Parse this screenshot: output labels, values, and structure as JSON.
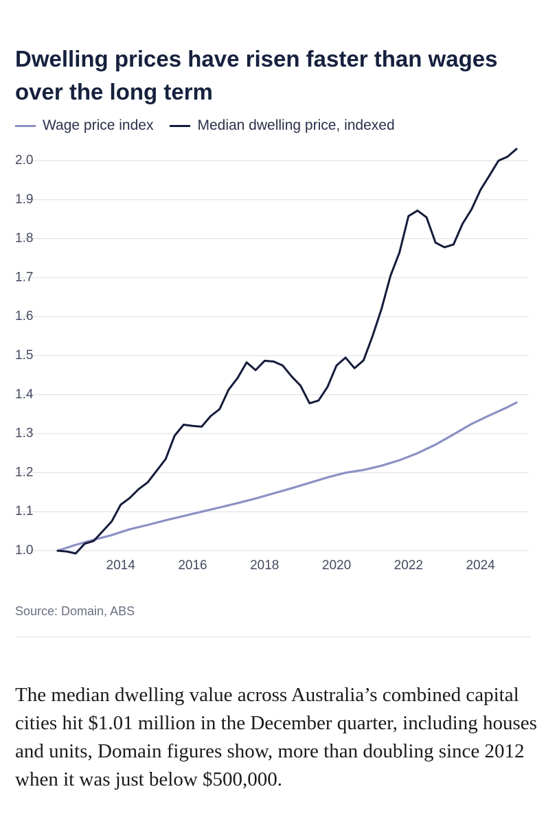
{
  "colors": {
    "wage": "#8c91c4",
    "dwelling": "#151c3b",
    "grid": "#dedee3",
    "axis_text": "#444a60"
  },
  "chart_data": {
    "type": "line",
    "title": "Dwelling prices have risen faster than wages over the long term",
    "ylim": [
      1.0,
      2.0
    ],
    "xlim": [
      2012.25,
      2025.0
    ],
    "y_ticks": [
      "1.0",
      "1.1",
      "1.2",
      "1.3",
      "1.4",
      "1.5",
      "1.6",
      "1.7",
      "1.8",
      "1.9",
      "2.0"
    ],
    "x_ticks": [
      "2014",
      "2016",
      "2018",
      "2020",
      "2022",
      "2024"
    ],
    "grid": true,
    "legend_position": "top-left",
    "series": [
      {
        "name": "Wage price index",
        "color": "#8c91c4",
        "points": [
          [
            2012.25,
            1.0
          ],
          [
            2012.75,
            1.015
          ],
          [
            2013.25,
            1.028
          ],
          [
            2013.75,
            1.04
          ],
          [
            2014.25,
            1.055
          ],
          [
            2014.75,
            1.066
          ],
          [
            2015.25,
            1.078
          ],
          [
            2015.75,
            1.089
          ],
          [
            2016.25,
            1.1
          ],
          [
            2016.75,
            1.111
          ],
          [
            2017.25,
            1.122
          ],
          [
            2017.75,
            1.134
          ],
          [
            2018.25,
            1.147
          ],
          [
            2018.75,
            1.16
          ],
          [
            2019.25,
            1.174
          ],
          [
            2019.75,
            1.188
          ],
          [
            2020.25,
            1.2
          ],
          [
            2020.75,
            1.207
          ],
          [
            2021.25,
            1.218
          ],
          [
            2021.75,
            1.232
          ],
          [
            2022.25,
            1.25
          ],
          [
            2022.75,
            1.272
          ],
          [
            2023.25,
            1.298
          ],
          [
            2023.75,
            1.325
          ],
          [
            2024.25,
            1.347
          ],
          [
            2024.75,
            1.368
          ],
          [
            2025.0,
            1.38
          ]
        ]
      },
      {
        "name": "Median dwelling price, indexed",
        "color": "#151c3b",
        "points": [
          [
            2012.25,
            1.0
          ],
          [
            2012.5,
            0.998
          ],
          [
            2012.75,
            0.993
          ],
          [
            2013.0,
            1.018
          ],
          [
            2013.25,
            1.025
          ],
          [
            2013.5,
            1.05
          ],
          [
            2013.75,
            1.075
          ],
          [
            2014.0,
            1.118
          ],
          [
            2014.25,
            1.135
          ],
          [
            2014.5,
            1.158
          ],
          [
            2014.75,
            1.175
          ],
          [
            2015.0,
            1.205
          ],
          [
            2015.25,
            1.235
          ],
          [
            2015.5,
            1.295
          ],
          [
            2015.75,
            1.323
          ],
          [
            2016.0,
            1.32
          ],
          [
            2016.25,
            1.318
          ],
          [
            2016.5,
            1.345
          ],
          [
            2016.75,
            1.363
          ],
          [
            2017.0,
            1.413
          ],
          [
            2017.25,
            1.443
          ],
          [
            2017.5,
            1.483
          ],
          [
            2017.75,
            1.463
          ],
          [
            2018.0,
            1.487
          ],
          [
            2018.25,
            1.485
          ],
          [
            2018.5,
            1.475
          ],
          [
            2018.75,
            1.447
          ],
          [
            2019.0,
            1.423
          ],
          [
            2019.25,
            1.378
          ],
          [
            2019.5,
            1.385
          ],
          [
            2019.75,
            1.42
          ],
          [
            2020.0,
            1.475
          ],
          [
            2020.25,
            1.495
          ],
          [
            2020.5,
            1.468
          ],
          [
            2020.75,
            1.488
          ],
          [
            2021.0,
            1.55
          ],
          [
            2021.25,
            1.62
          ],
          [
            2021.5,
            1.705
          ],
          [
            2021.75,
            1.765
          ],
          [
            2022.0,
            1.858
          ],
          [
            2022.25,
            1.872
          ],
          [
            2022.5,
            1.855
          ],
          [
            2022.75,
            1.79
          ],
          [
            2023.0,
            1.778
          ],
          [
            2023.25,
            1.785
          ],
          [
            2023.5,
            1.838
          ],
          [
            2023.75,
            1.875
          ],
          [
            2024.0,
            1.925
          ],
          [
            2024.25,
            1.962
          ],
          [
            2024.5,
            2.0
          ],
          [
            2024.75,
            2.01
          ],
          [
            2025.0,
            2.03
          ]
        ]
      }
    ]
  },
  "source": "Source: Domain, ABS",
  "article": "The median dwelling value across Australia’s combined capital cities hit $1.01 million in the December quarter, including houses and units, Domain figures show, more than doubling since 2012 when it was just below $500,000."
}
